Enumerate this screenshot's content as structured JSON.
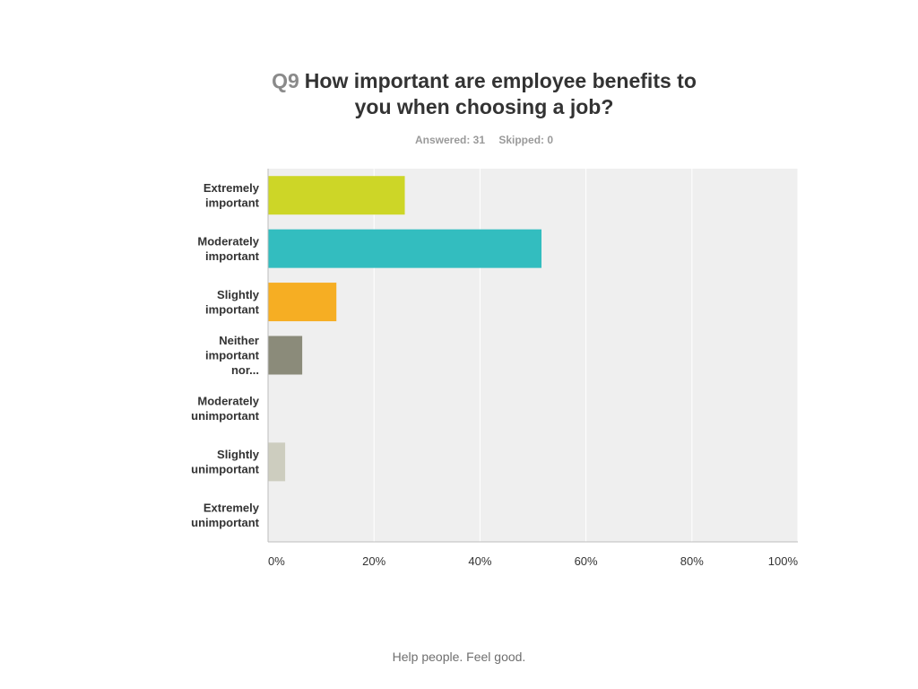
{
  "question": {
    "number": "Q9",
    "text_line1": "How important are employee benefits to",
    "text_line2": "you when choosing a job?"
  },
  "stats": {
    "answered": "Answered: 31",
    "skipped": "Skipped: 0"
  },
  "footer": "Help people. Feel good.",
  "chart_data": {
    "type": "bar",
    "orientation": "horizontal",
    "categories": [
      [
        "Extremely",
        "important"
      ],
      [
        "Moderately",
        "important"
      ],
      [
        "Slightly",
        "important"
      ],
      [
        "Neither",
        "important",
        "nor..."
      ],
      [
        "Moderately",
        "unimportant"
      ],
      [
        "Slightly",
        "unimportant"
      ],
      [
        "Extremely",
        "unimportant"
      ]
    ],
    "values": [
      25.81,
      51.61,
      12.9,
      6.45,
      0,
      3.23,
      0
    ],
    "colors": [
      "#cdd627",
      "#33bdbf",
      "#f6ae23",
      "#8b8b7a",
      "#d7d7cc",
      "#cdcdbf",
      "#bdbdb0"
    ],
    "xlim": [
      0,
      100
    ],
    "xticks": [
      "0%",
      "20%",
      "40%",
      "60%",
      "80%",
      "100%"
    ],
    "grid": true,
    "plot_background": "#efefef"
  }
}
